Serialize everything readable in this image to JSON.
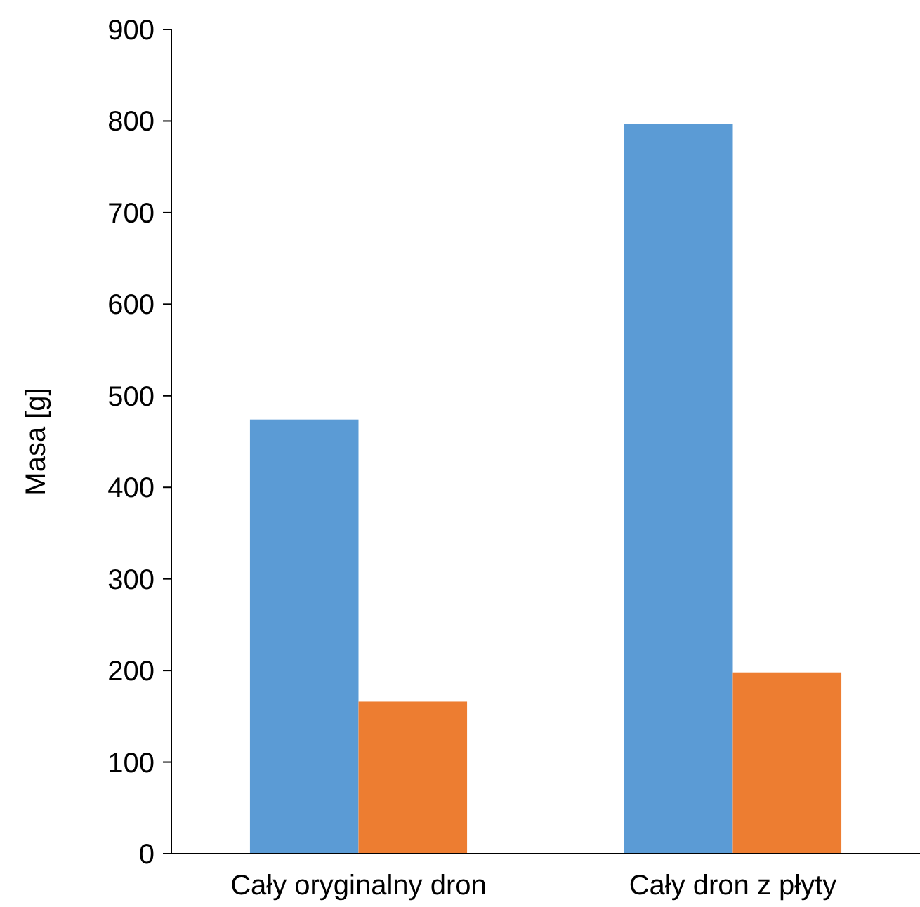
{
  "chart_data": {
    "type": "bar",
    "ylabel": "Masa [g]",
    "categories": [
      "Cały oryginalny dron",
      "Cały dron z płyty"
    ],
    "series": [
      {
        "color": "#5b9bd5",
        "values": [
          474,
          797
        ]
      },
      {
        "color": "#ed7d31",
        "values": [
          166,
          198
        ]
      }
    ],
    "ylim": [
      0,
      900
    ],
    "yticks": [
      0,
      100,
      200,
      300,
      400,
      500,
      600,
      700,
      800,
      900
    ],
    "grid": false
  }
}
